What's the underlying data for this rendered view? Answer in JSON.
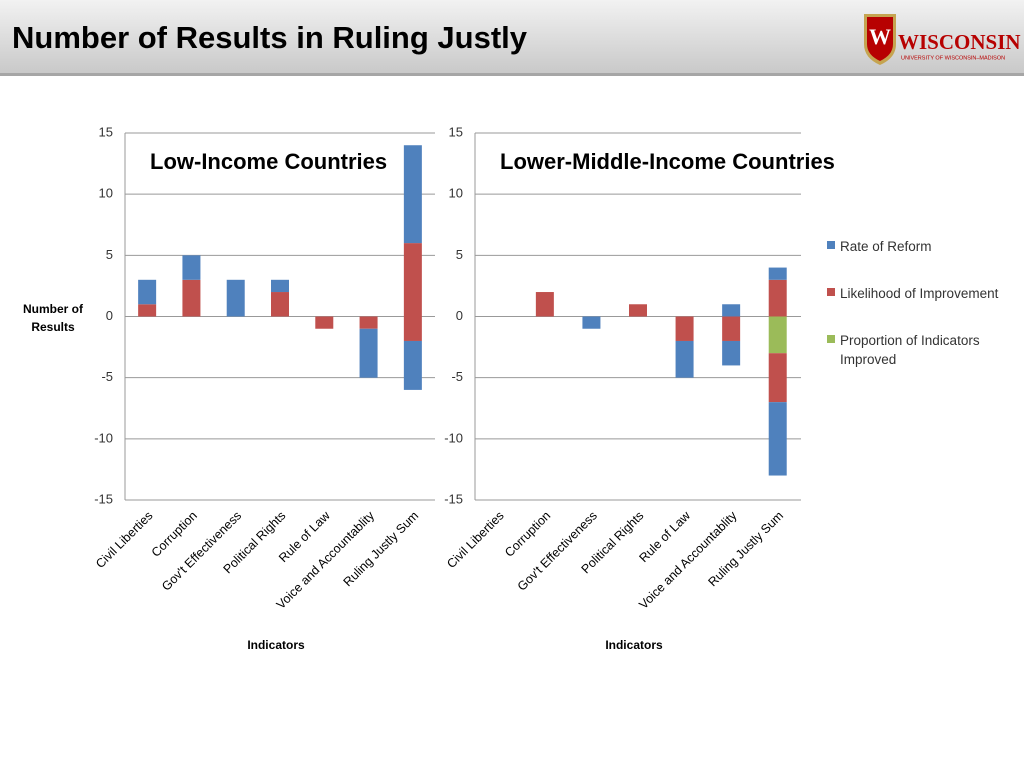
{
  "header": {
    "title": "Number of Results in Ruling Justly"
  },
  "logo": {
    "crest": "W",
    "name": "WISCONSIN",
    "subtitle": "UNIVERSITY OF WISCONSIN–MADISON"
  },
  "chart_data": [
    {
      "type": "bar",
      "stacked": true,
      "title": "Low-Income Countries",
      "y_label": "Number of Results",
      "x_label": "Indicators",
      "categories": [
        "Civil  Liberties",
        "Corruption",
        "Gov't Effectiveness",
        "Political Rights",
        "Rule of Law",
        "Voice and Accountablity",
        "Ruling Justly Sum"
      ],
      "ylim": [
        -15,
        15
      ],
      "yticks": [
        -15,
        -10,
        -5,
        0,
        5,
        10,
        15
      ],
      "grid": true,
      "series": [
        {
          "color": "#4f81bd",
          "positive": [
            2,
            2,
            3,
            1,
            0,
            0,
            8
          ],
          "negative": [
            0,
            0,
            0,
            0,
            0,
            -4,
            -4
          ]
        },
        {
          "color": "#c0504d",
          "positive": [
            1,
            3,
            0,
            2,
            0,
            0,
            6
          ],
          "negative": [
            0,
            0,
            0,
            0,
            -1,
            -1,
            -2
          ]
        },
        {
          "color": "#9bbb59",
          "positive": [
            0,
            0,
            0,
            0,
            0,
            0,
            0
          ],
          "negative": [
            0,
            0,
            0,
            0,
            0,
            0,
            0
          ]
        }
      ]
    },
    {
      "type": "bar",
      "stacked": true,
      "title": "Lower-Middle-Income Countries",
      "x_label": "Indicators",
      "categories": [
        "Civil  Liberties",
        "Corruption",
        "Gov't Effectiveness",
        "Political Rights",
        "Rule of Law",
        "Voice and Accountablity",
        "Ruling Justly Sum"
      ],
      "ylim": [
        -15,
        15
      ],
      "yticks": [
        -15,
        -10,
        -5,
        0,
        5,
        10,
        15
      ],
      "grid": true,
      "legend": "right",
      "series": [
        {
          "name": "Rate of Reform",
          "color": "#4f81bd",
          "positive": [
            0,
            0,
            0,
            0,
            0,
            1,
            1
          ],
          "negative": [
            0,
            0,
            -1,
            0,
            -3,
            -2,
            -6
          ]
        },
        {
          "name": "Likelihood of Improvement",
          "color": "#c0504d",
          "positive": [
            0,
            2,
            0,
            1,
            0,
            0,
            3
          ],
          "negative": [
            0,
            0,
            0,
            0,
            -2,
            -2,
            -4
          ]
        },
        {
          "name": "Proportion of Indicators Improved",
          "color": "#9bbb59",
          "positive": [
            0,
            0,
            0,
            0,
            0,
            0,
            0
          ],
          "negative": [
            0,
            0,
            0,
            0,
            0,
            0,
            -3
          ]
        }
      ]
    }
  ]
}
